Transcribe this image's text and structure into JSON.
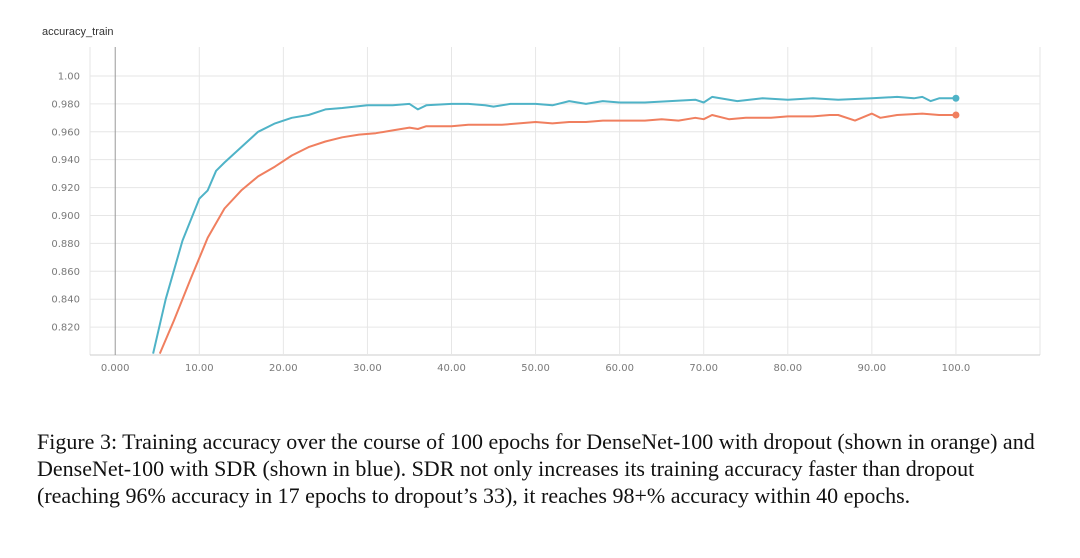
{
  "chart_data": {
    "type": "line",
    "title": "accuracy_train",
    "xlabel": "",
    "ylabel": "",
    "xlim": [
      -3,
      110
    ],
    "ylim": [
      0.8,
      1.01
    ],
    "xticks": [
      0,
      10,
      20,
      30,
      40,
      50,
      60,
      70,
      80,
      90,
      100
    ],
    "xtick_labels": [
      "0.000",
      "10.00",
      "20.00",
      "30.00",
      "40.00",
      "50.00",
      "60.00",
      "70.00",
      "80.00",
      "90.00",
      "100.0"
    ],
    "yticks": [
      0.82,
      0.84,
      0.86,
      0.88,
      0.9,
      0.92,
      0.94,
      0.96,
      0.98,
      1.0
    ],
    "ytick_labels": [
      "0.820",
      "0.840",
      "0.860",
      "0.880",
      "0.900",
      "0.920",
      "0.940",
      "0.960",
      "0.980",
      "1.00"
    ],
    "series": [
      {
        "name": "DenseNet-100 with SDR",
        "color": "#4fb3c7",
        "x": [
          4.5,
          6,
          8,
          10,
          11,
          12,
          13,
          15,
          17,
          19,
          21,
          23,
          25,
          27,
          30,
          33,
          35,
          36,
          37,
          40,
          42,
          44,
          45,
          47,
          50,
          52,
          54,
          56,
          58,
          60,
          63,
          66,
          69,
          70,
          71,
          74,
          77,
          80,
          83,
          86,
          90,
          93,
          95,
          96,
          97,
          98,
          100
        ],
        "y": [
          0.801,
          0.84,
          0.882,
          0.912,
          0.918,
          0.932,
          0.938,
          0.949,
          0.96,
          0.966,
          0.97,
          0.972,
          0.976,
          0.977,
          0.979,
          0.979,
          0.98,
          0.976,
          0.979,
          0.98,
          0.98,
          0.979,
          0.978,
          0.98,
          0.98,
          0.979,
          0.982,
          0.98,
          0.982,
          0.981,
          0.981,
          0.982,
          0.983,
          0.981,
          0.985,
          0.982,
          0.984,
          0.983,
          0.984,
          0.983,
          0.984,
          0.985,
          0.984,
          0.985,
          0.982,
          0.984,
          0.984
        ]
      },
      {
        "name": "DenseNet-100 with dropout",
        "color": "#f07f5f",
        "x": [
          5.3,
          7,
          9,
          11,
          13,
          15,
          17,
          19,
          21,
          23,
          25,
          27,
          29,
          31,
          33,
          35,
          36,
          37,
          40,
          42,
          44,
          46,
          48,
          50,
          52,
          54,
          56,
          58,
          60,
          63,
          65,
          67,
          69,
          70,
          71,
          73,
          75,
          78,
          80,
          83,
          85,
          86,
          88,
          90,
          91,
          93,
          96,
          98,
          100
        ],
        "y": [
          0.801,
          0.825,
          0.855,
          0.884,
          0.905,
          0.918,
          0.928,
          0.935,
          0.943,
          0.949,
          0.953,
          0.956,
          0.958,
          0.959,
          0.961,
          0.963,
          0.962,
          0.964,
          0.964,
          0.965,
          0.965,
          0.965,
          0.966,
          0.967,
          0.966,
          0.967,
          0.967,
          0.968,
          0.968,
          0.968,
          0.969,
          0.968,
          0.97,
          0.969,
          0.972,
          0.969,
          0.97,
          0.97,
          0.971,
          0.971,
          0.972,
          0.972,
          0.968,
          0.973,
          0.97,
          0.972,
          0.973,
          0.972,
          0.972
        ]
      }
    ]
  },
  "caption": "Figure 3: Training accuracy over the course of 100 epochs for DenseNet-100 with dropout (shown in orange) and DenseNet-100 with SDR (shown in blue). SDR not only increases its training accuracy faster than dropout (reaching 96% accuracy in 17 epochs to dropout’s 33), it reaches 98+% accuracy within 40 epochs.",
  "colors": {
    "grid": "#e6e6e6",
    "axis": "#cccccc",
    "zero_line": "#999999"
  }
}
